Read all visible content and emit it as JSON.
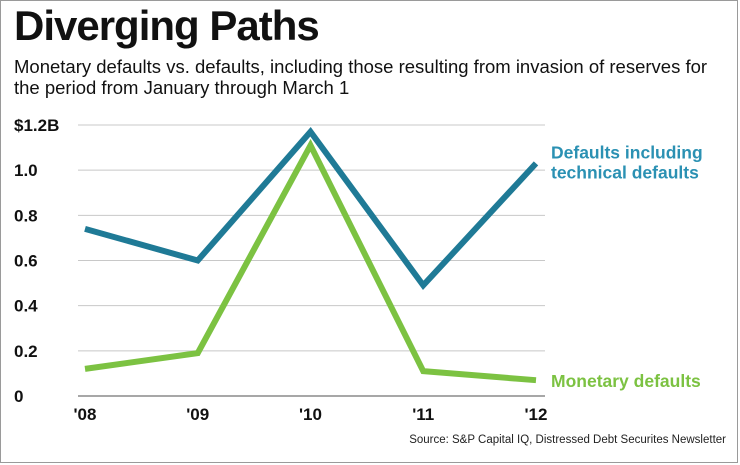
{
  "title": "Diverging Paths",
  "subtitle": "Monetary defaults vs. defaults, including those resulting from invasion of reserves for the period from January through March 1",
  "source": "Source:  S&P Capital IQ, Distressed Debt Securites Newsletter",
  "colors": {
    "technical": "#1f7a96",
    "technical_label": "#2b91b3",
    "monetary": "#7cc242",
    "grid": "#c8c8c8"
  },
  "chart_data": {
    "type": "line",
    "title": "Diverging Paths",
    "subtitle": "Monetary defaults vs. defaults, including those resulting from invasion of reserves for the period from January through March 1",
    "categories": [
      "'08",
      "'09",
      "'10",
      "'11",
      "'12"
    ],
    "y_ticks": [
      "$1.2B",
      "1.0",
      "0.8",
      "0.6",
      "0.4",
      "0.2",
      "0"
    ],
    "y_tick_values": [
      1.2,
      1.0,
      0.8,
      0.6,
      0.4,
      0.2,
      0
    ],
    "ylim": [
      0,
      1.2
    ],
    "grid": true,
    "legend": "inline labels at right end of lines",
    "series": [
      {
        "name": "Defaults including technical defaults",
        "label_lines": [
          "Defaults including",
          "technical defaults"
        ],
        "values": [
          0.74,
          0.6,
          1.17,
          0.49,
          1.03
        ],
        "color": "#1f7a96"
      },
      {
        "name": "Monetary defaults",
        "label_lines": [
          "Monetary defaults"
        ],
        "values": [
          0.12,
          0.19,
          1.11,
          0.11,
          0.07
        ],
        "color": "#7cc242"
      }
    ]
  }
}
